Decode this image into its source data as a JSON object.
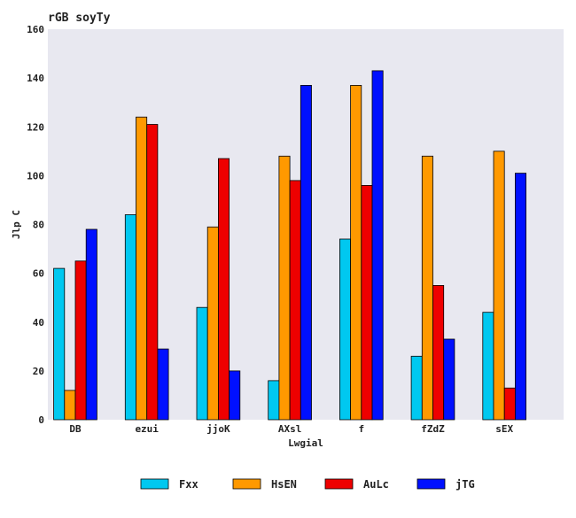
{
  "chart_data": {
    "type": "bar",
    "title": "rGB soyTy",
    "xlabel": "Lwgial",
    "ylabel": "Jlp C",
    "categories": [
      "DB",
      "ezui",
      "jjoK",
      "AXsl",
      "f",
      "fZdZ",
      "sEX"
    ],
    "series": [
      {
        "name": "Fxx",
        "color": "#00c8f0",
        "values": [
          62,
          84,
          46,
          16,
          74,
          26,
          44
        ]
      },
      {
        "name": "HsEN",
        "color": "#ff9900",
        "values": [
          12,
          124,
          79,
          108,
          137,
          108,
          110
        ]
      },
      {
        "name": "AuLc",
        "color": "#ee0000",
        "values": [
          65,
          121,
          107,
          98,
          96,
          55,
          13
        ]
      },
      {
        "name": "jTG",
        "color": "#0010ff",
        "values": [
          78,
          29,
          20,
          137,
          143,
          33,
          101
        ]
      }
    ],
    "ylim": [
      0,
      160
    ],
    "yticks": [
      0,
      20,
      40,
      60,
      80,
      100,
      120,
      140,
      160
    ],
    "grid": false,
    "legend_position": "bottom-center",
    "plot_background": "#e8e8f0"
  }
}
